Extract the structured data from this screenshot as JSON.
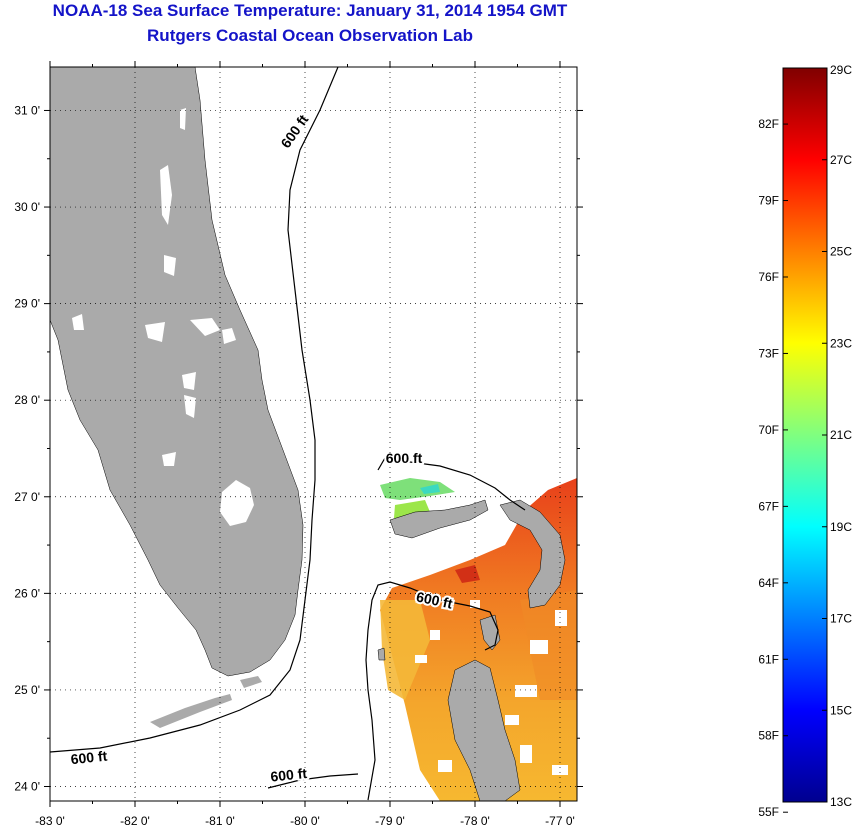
{
  "header": {
    "title": "NOAA-18 Sea Surface Temperature:  January 31, 2014 1954 GMT",
    "subtitle": "Rutgers Coastal Ocean Observation Lab"
  },
  "map": {
    "lat_range": [
      23.85,
      31.45
    ],
    "lon_range": [
      -83.0,
      -76.8
    ],
    "lat_ticks": [
      {
        "value": 31,
        "label": "31 0'"
      },
      {
        "value": 30,
        "label": "30 0'"
      },
      {
        "value": 29,
        "label": "29 0'"
      },
      {
        "value": 28,
        "label": "28 0'"
      },
      {
        "value": 27,
        "label": "27 0'"
      },
      {
        "value": 26,
        "label": "26 0'"
      },
      {
        "value": 25,
        "label": "25 0'"
      },
      {
        "value": 24,
        "label": "24 0'"
      }
    ],
    "lon_ticks": [
      {
        "value": -83,
        "label": "-83 0'"
      },
      {
        "value": -82,
        "label": "-82 0'"
      },
      {
        "value": -81,
        "label": "-81 0'"
      },
      {
        "value": -80,
        "label": "-80 0'"
      },
      {
        "value": -79,
        "label": "-79 0'"
      },
      {
        "value": -78,
        "label": "-78 0'"
      },
      {
        "value": -77,
        "label": "-77 0'"
      }
    ],
    "grid": "dotted",
    "contour_labels": [
      {
        "text": "600 ft",
        "lon": -80.2,
        "lat": 30.6,
        "angle": -55
      },
      {
        "text": "600 ft",
        "lon": -79.05,
        "lat": 27.35,
        "angle": 0
      },
      {
        "text": "600 ft",
        "lon": -78.7,
        "lat": 25.92,
        "angle": 12
      },
      {
        "text": "600 ft",
        "lon": -82.75,
        "lat": 24.23,
        "angle": -6
      },
      {
        "text": "600 ft",
        "lon": -80.4,
        "lat": 24.05,
        "angle": -6
      }
    ],
    "colors": {
      "land": "#aaaaaa",
      "no_data": "#ffffff",
      "contour": "#000000"
    }
  },
  "colorbar": {
    "min_c": 13,
    "max_c": 29,
    "colors": [
      "#00008f",
      "#0000ff",
      "#00ffff",
      "#ffff00",
      "#ff8000",
      "#ff0000",
      "#800000"
    ],
    "celsius_ticks": [
      {
        "value": 29,
        "label": "29C"
      },
      {
        "value": 27,
        "label": "27C"
      },
      {
        "value": 25,
        "label": "25C"
      },
      {
        "value": 23,
        "label": "23C"
      },
      {
        "value": 21,
        "label": "21C"
      },
      {
        "value": 19,
        "label": "19C"
      },
      {
        "value": 17,
        "label": "17C"
      },
      {
        "value": 15,
        "label": "15C"
      },
      {
        "value": 13,
        "label": "13C"
      }
    ],
    "fahrenheit_ticks": [
      {
        "value": 82,
        "label": "82F"
      },
      {
        "value": 79,
        "label": "79F"
      },
      {
        "value": 76,
        "label": "76F"
      },
      {
        "value": 73,
        "label": "73F"
      },
      {
        "value": 70,
        "label": "70F"
      },
      {
        "value": 67,
        "label": "67F"
      },
      {
        "value": 64,
        "label": "64F"
      },
      {
        "value": 61,
        "label": "61F"
      },
      {
        "value": 58,
        "label": "58F"
      },
      {
        "value": 55,
        "label": "55F"
      }
    ]
  }
}
